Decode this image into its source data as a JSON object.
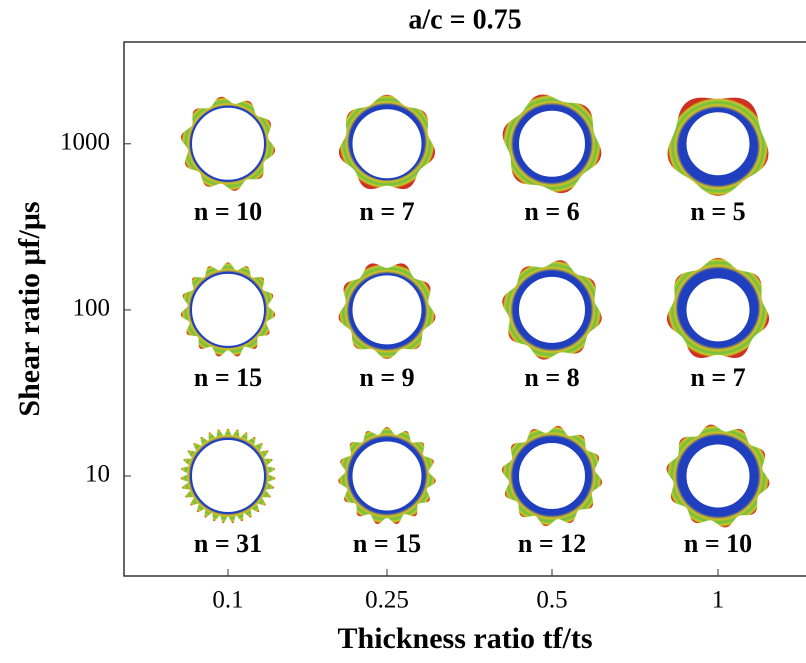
{
  "chart_data": {
    "type": "wrinkle-grid",
    "title": "a/c = 0.75",
    "xlabel": "Thickness ratio tf/ts",
    "ylabel": "Shear ratio μf/μs",
    "categories": [
      "0.1",
      "0.25",
      "0.5",
      "1"
    ],
    "log_scale": true,
    "ylim": [
      2.5,
      4100
    ],
    "yticks": [
      10,
      100,
      1000
    ],
    "series": [
      {
        "y": 1000,
        "values": [
          10,
          7,
          6,
          5
        ],
        "value_labels": [
          "n = 10",
          "n = 7",
          "n = 6",
          "n = 5"
        ]
      },
      {
        "y": 100,
        "values": [
          15,
          9,
          8,
          7
        ],
        "value_labels": [
          "n = 15",
          "n = 9",
          "n = 8",
          "n = 7"
        ]
      },
      {
        "y": 10,
        "values": [
          31,
          15,
          12,
          10
        ],
        "value_labels": [
          "n = 31",
          "n = 15",
          "n = 12",
          "n = 10"
        ]
      }
    ]
  }
}
